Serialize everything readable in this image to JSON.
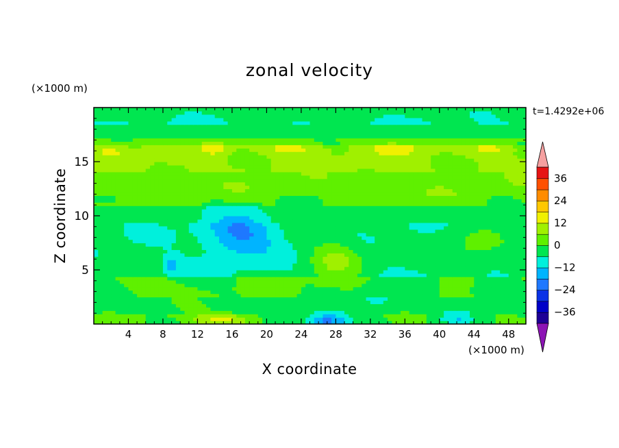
{
  "chart_data": {
    "type": "heatmap",
    "title": "zonal velocity",
    "xlabel": "X coordinate",
    "ylabel": "Z coordinate",
    "x_unit": "(×1000 m)",
    "y_unit": "(×1000 m)",
    "time_label": "t=1.4292e+06",
    "xlim": [
      0,
      50
    ],
    "ylim": [
      0,
      20
    ],
    "x_ticks": [
      4,
      8,
      12,
      16,
      20,
      24,
      28,
      32,
      36,
      40,
      44,
      48
    ],
    "y_ticks": [
      5,
      10,
      15
    ],
    "colorbar": {
      "labels": [
        36,
        24,
        12,
        0,
        -12,
        -24,
        -36
      ],
      "levels": [
        -42,
        -36,
        -30,
        -24,
        -18,
        -12,
        -6,
        0,
        6,
        12,
        18,
        24,
        30,
        36,
        42
      ],
      "colors": [
        "#5a007a",
        "#1e0096",
        "#0000c8",
        "#0a32e6",
        "#1e78ff",
        "#00b4ff",
        "#00f0dc",
        "#00e650",
        "#5ff000",
        "#a0f000",
        "#f0f000",
        "#ffc800",
        "#ff8c00",
        "#ff5000",
        "#e61414",
        "#c80000"
      ],
      "over_color": "#f5a0a0",
      "under_color": "#8c14b4"
    },
    "field_features": [
      {
        "x": 14,
        "z": 16.3,
        "sx": 1.5,
        "sz": 0.6,
        "v": 10
      },
      {
        "x": 23,
        "z": 16.2,
        "sx": 3,
        "sz": 0.5,
        "v": 8
      },
      {
        "x": 35,
        "z": 16.2,
        "sx": 2.5,
        "sz": 0.5,
        "v": 9
      },
      {
        "x": 2,
        "z": 16.0,
        "sx": 1.5,
        "sz": 0.5,
        "v": 7
      },
      {
        "x": 46,
        "z": 16.2,
        "sx": 2,
        "sz": 0.4,
        "v": 7
      },
      {
        "x": 17,
        "z": 8.3,
        "sx": 4,
        "sz": 2.2,
        "v": -14
      },
      {
        "x": 9,
        "z": 5.5,
        "sx": 1,
        "sz": 0.8,
        "v": -10
      },
      {
        "x": 28,
        "z": 6.0,
        "sx": 3,
        "sz": 1.8,
        "v": 12
      },
      {
        "x": 15,
        "z": 0.4,
        "sx": 3.5,
        "sz": 0.6,
        "v": 14
      },
      {
        "x": 27,
        "z": 0.3,
        "sx": 2.5,
        "sz": 0.7,
        "v": -22
      },
      {
        "x": 42,
        "z": 0.6,
        "sx": 2,
        "sz": 0.6,
        "v": -10
      },
      {
        "x": 44,
        "z": 7.0,
        "sx": 4,
        "sz": 2,
        "v": 6
      },
      {
        "x": 5,
        "z": 3.5,
        "sx": 3,
        "sz": 1.5,
        "v": 3
      },
      {
        "x": 33,
        "z": 2.5,
        "sx": 2,
        "sz": 1.5,
        "v": -7
      },
      {
        "x": 46,
        "z": 3.0,
        "sx": 3,
        "sz": 1.2,
        "v": -5
      }
    ]
  }
}
